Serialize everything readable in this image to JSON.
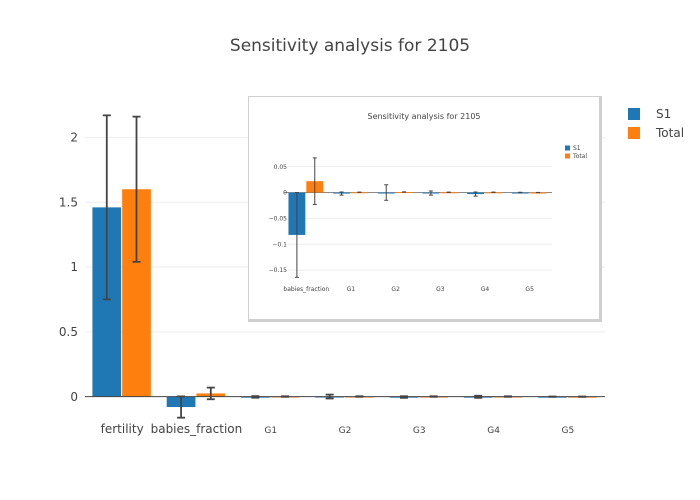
{
  "chart_data": [
    {
      "type": "bar",
      "title": "Sensitivity analysis for 2105",
      "xlabel": "",
      "ylabel": "",
      "categories": [
        "fertility",
        "babies_fraction",
        "G1",
        "G2",
        "G3",
        "G4",
        "G5"
      ],
      "ylim": [
        -0.18,
        2.35
      ],
      "yticks": [
        0,
        0.5,
        1,
        1.5,
        2
      ],
      "ytick_labels": [
        "0",
        "0.5",
        "1",
        "1.5",
        "2"
      ],
      "grid": true,
      "legend": "top-right",
      "series": [
        {
          "name": "S1",
          "color": "#1f77b4",
          "values": [
            1.46,
            -0.08,
            -0.002,
            0.001,
            -0.003,
            -0.001,
            0.0
          ],
          "errors": [
            0.71,
            0.082,
            0.006,
            0.015,
            0.006,
            0.008,
            0.001
          ]
        },
        {
          "name": "Total",
          "color": "#ff7f0e",
          "values": [
            1.6,
            0.025,
            0.001,
            0.001,
            0.001,
            0.001,
            0.0
          ],
          "errors": [
            0.56,
            0.045,
            0.002,
            0.002,
            0.002,
            0.002,
            0.001
          ]
        }
      ]
    },
    {
      "type": "bar",
      "title": "Sensitivity analysis for 2105",
      "xlabel": "",
      "ylabel": "",
      "categories": [
        "babies_fraction",
        "G1",
        "G2",
        "G3",
        "G4",
        "G5"
      ],
      "ylim": [
        -0.175,
        0.09
      ],
      "yticks": [
        0.05,
        0,
        -0.05,
        -0.1,
        -0.15
      ],
      "ytick_labels": [
        "0.05",
        "0",
        "−0.05",
        "−0.1",
        "−0.15"
      ],
      "grid": true,
      "legend": "top-right",
      "series": [
        {
          "name": "S1",
          "color": "#1f77b4",
          "values": [
            -0.082,
            -0.002,
            0.0,
            -0.001,
            -0.003,
            0.0
          ],
          "errors": [
            0.082,
            0.003,
            0.015,
            0.004,
            0.004,
            0.0005
          ]
        },
        {
          "name": "Total",
          "color": "#ff7f0e",
          "values": [
            0.022,
            0.0005,
            0.001,
            0.0005,
            0.0005,
            0.0
          ],
          "errors": [
            0.045,
            0.0003,
            0.0003,
            0.0003,
            0.0003,
            0.0002
          ]
        }
      ]
    }
  ]
}
